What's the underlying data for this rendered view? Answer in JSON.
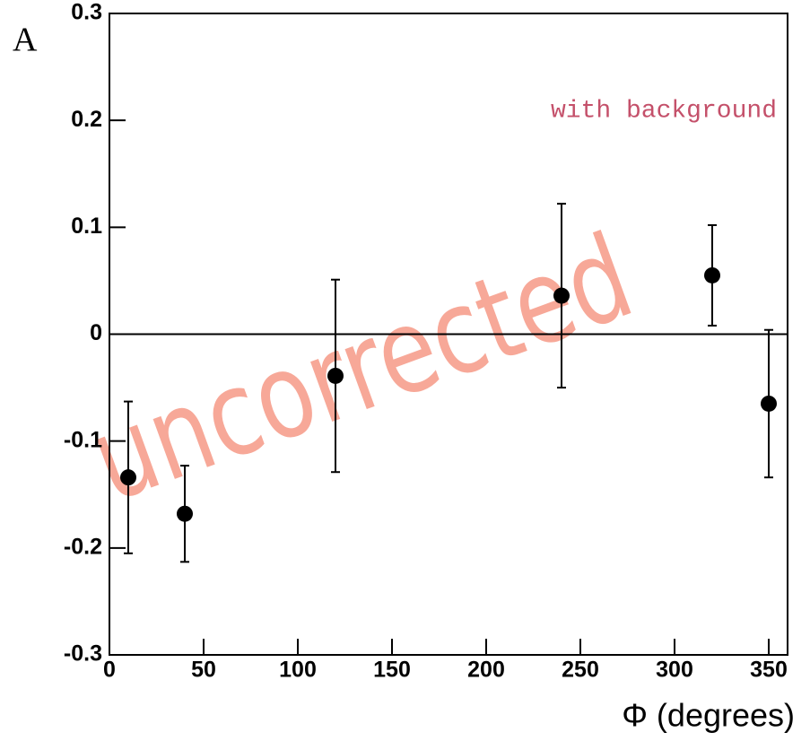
{
  "chart_data": {
    "type": "scatter",
    "ylabel": "A",
    "xlabel": "Φ (degrees)",
    "annotation": "with background",
    "watermark": "uncorrected",
    "x": [
      10,
      40,
      120,
      240,
      320,
      350
    ],
    "series": [
      {
        "color": "#000000",
        "values": [
          -0.134,
          -0.168,
          -0.039,
          0.036,
          0.055,
          -0.065
        ],
        "errors": [
          0.071,
          0.045,
          0.09,
          0.086,
          0.047,
          0.069
        ]
      }
    ],
    "xlim": [
      0,
      360
    ],
    "ylim": [
      -0.3,
      0.3
    ],
    "xticks": [
      0,
      50,
      100,
      150,
      200,
      250,
      300,
      350
    ],
    "yticks": [
      -0.3,
      -0.2,
      -0.1,
      0,
      0.1,
      0.2,
      0.3
    ],
    "zero_line": true
  }
}
